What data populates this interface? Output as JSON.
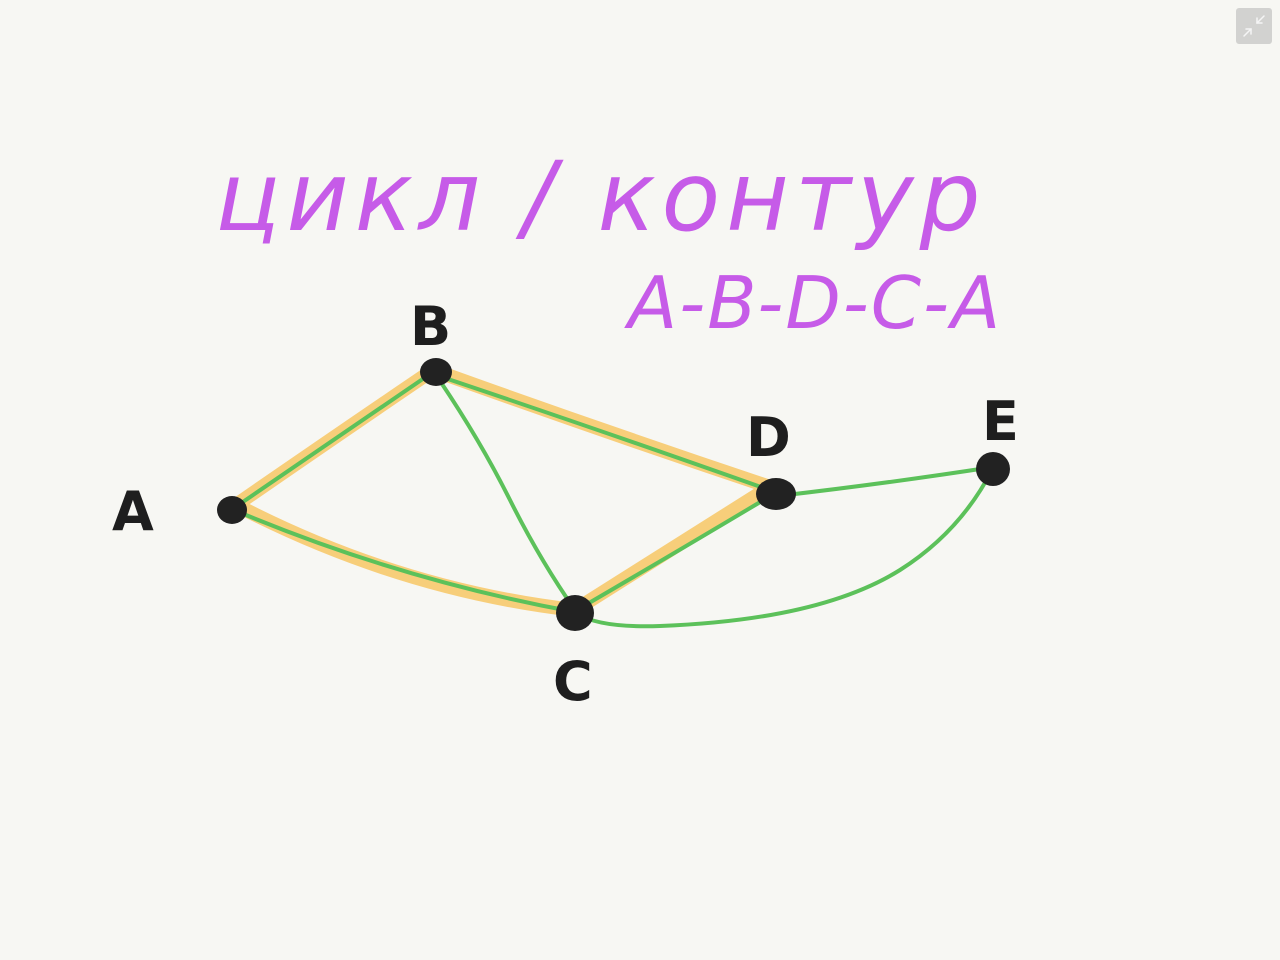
{
  "title": "цикл / контур",
  "cycle_path": "A-B-D-C-A",
  "nodes": [
    {
      "id": "A",
      "label": "A"
    },
    {
      "id": "B",
      "label": "B"
    },
    {
      "id": "C",
      "label": "C"
    },
    {
      "id": "D",
      "label": "D"
    },
    {
      "id": "E",
      "label": "E"
    }
  ],
  "edges": [
    {
      "from": "A",
      "to": "B"
    },
    {
      "from": "B",
      "to": "D"
    },
    {
      "from": "B",
      "to": "C"
    },
    {
      "from": "A",
      "to": "C"
    },
    {
      "from": "C",
      "to": "D"
    },
    {
      "from": "D",
      "to": "E"
    },
    {
      "from": "C",
      "to": "E"
    }
  ],
  "highlighted_cycle": [
    "A",
    "B",
    "D",
    "C",
    "A"
  ],
  "colors": {
    "background": "#f7f7f3",
    "title": "#c65be8",
    "edge": "#5cc15a",
    "highlight": "#f8c866",
    "node": "#222222",
    "label": "#1e1e1e",
    "button": "#d2d2d0"
  },
  "controls": {
    "exit_fullscreen_icon": "exit-fullscreen-icon"
  }
}
